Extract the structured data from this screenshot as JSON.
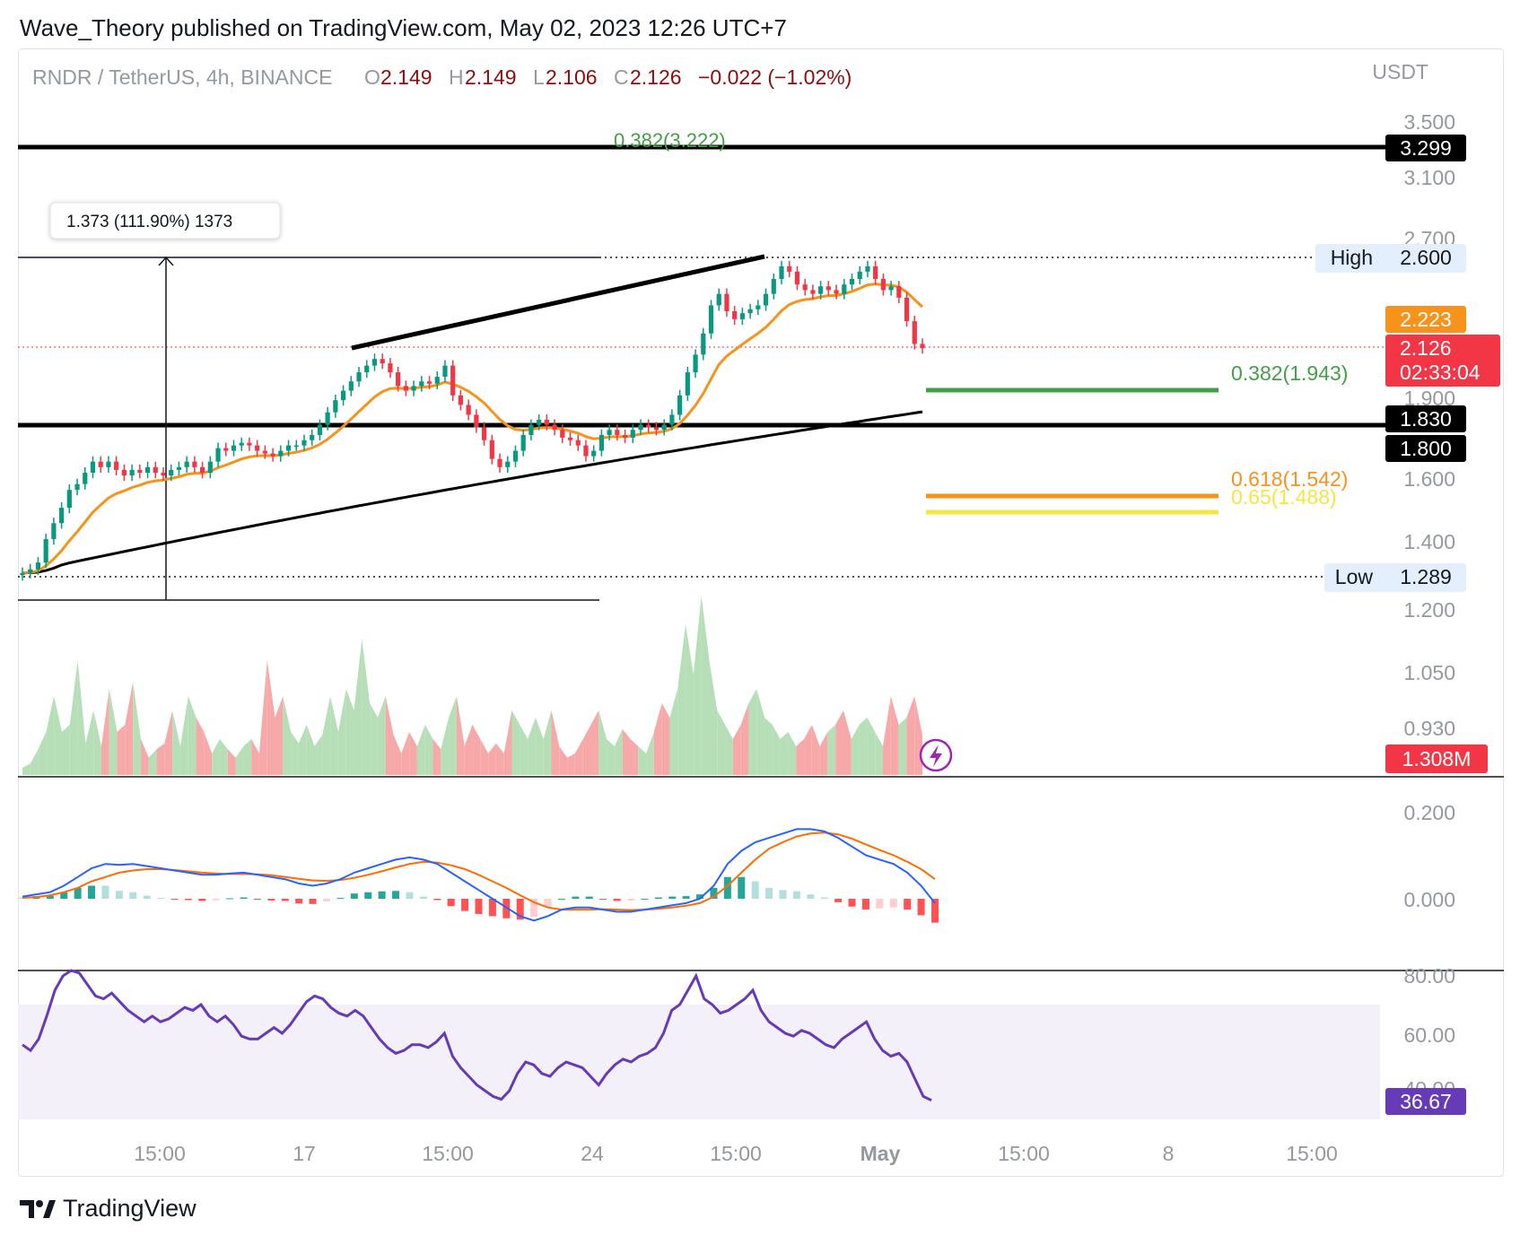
{
  "header": {
    "publisher_line": "Wave_Theory published on TradingView.com, May 02, 2023 12:26 UTC+7"
  },
  "footer": {
    "brand": "TradingView"
  },
  "colors": {
    "up": "#089981",
    "down": "#f23645",
    "ema50": "#f7931a",
    "ema200": "#000000",
    "fib382": "#43a047",
    "fib618": "#f7931a",
    "fib65": "#f5e642",
    "macd": "#2962ff",
    "signal": "#ff6d00",
    "rsi": "#673ab7",
    "vol_up": "#b6dfb8",
    "vol_down": "#f7a9a9"
  },
  "chart_data": [
    {
      "type": "candlestick",
      "symbol": "RNDR / TetherUS, 4h, BINANCE",
      "ohlc": {
        "o_label": "O",
        "o": "2.149",
        "h_label": "H",
        "h": "2.149",
        "l_label": "L",
        "l": "2.106",
        "c_label": "C",
        "c": "2.126",
        "change": "−0.022 (−1.02%)"
      },
      "currency": "USDT",
      "x_ticks": [
        "15:00",
        "17",
        "15:00",
        "24",
        "15:00",
        "May",
        "15:00",
        "8",
        "15:00"
      ],
      "y_ticks": [
        "3.500",
        "3.100",
        "2.700",
        "1.900",
        "1.600",
        "1.400",
        "1.200",
        "1.050",
        "0.930"
      ],
      "log_scale": true,
      "price_tags": {
        "resistance": "3.299",
        "high_label": "High",
        "high": "2.600",
        "ema50": "2.223",
        "last": "2.126",
        "countdown": "02:33:04",
        "support_top": "1.830",
        "support_bottom": "1.800",
        "low_label": "Low",
        "low": "1.289"
      },
      "fib_labels": {
        "f382_top": "0.382(3.222)",
        "f382": "0.382(1.943)",
        "f618": "0.618(1.542)",
        "f65": "0.65(1.488)"
      },
      "measure_label": "1.373 (111.90%) 1373",
      "close_path": [
        1.3,
        1.31,
        1.33,
        1.4,
        1.45,
        1.5,
        1.56,
        1.58,
        1.62,
        1.66,
        1.64,
        1.66,
        1.63,
        1.61,
        1.63,
        1.62,
        1.64,
        1.62,
        1.61,
        1.63,
        1.64,
        1.66,
        1.64,
        1.62,
        1.66,
        1.71,
        1.7,
        1.72,
        1.73,
        1.72,
        1.7,
        1.69,
        1.68,
        1.7,
        1.72,
        1.72,
        1.74,
        1.76,
        1.8,
        1.85,
        1.9,
        1.94,
        1.98,
        2.02,
        2.05,
        2.08,
        2.06,
        2.02,
        1.96,
        1.94,
        1.96,
        1.98,
        1.97,
        2.0,
        2.05,
        1.92,
        1.88,
        1.84,
        1.79,
        1.74,
        1.67,
        1.64,
        1.66,
        1.7,
        1.76,
        1.8,
        1.82,
        1.8,
        1.78,
        1.75,
        1.74,
        1.72,
        1.68,
        1.7,
        1.76,
        1.78,
        1.76,
        1.75,
        1.78,
        1.8,
        1.79,
        1.78,
        1.8,
        1.84,
        1.92,
        2.02,
        2.1,
        2.2,
        2.34,
        2.4,
        2.31,
        2.27,
        2.3,
        2.32,
        2.34,
        2.4,
        2.48,
        2.55,
        2.52,
        2.45,
        2.42,
        2.4,
        2.44,
        2.42,
        2.4,
        2.45,
        2.48,
        2.52,
        2.55,
        2.48,
        2.42,
        2.44,
        2.38,
        2.26,
        2.15,
        2.13
      ],
      "volume_label": "1.308M",
      "volume_path": [
        0.05,
        0.08,
        0.18,
        0.3,
        0.55,
        0.3,
        0.35,
        0.8,
        0.22,
        0.45,
        0.2,
        0.6,
        0.3,
        0.35,
        0.65,
        0.25,
        0.12,
        0.18,
        0.22,
        0.45,
        0.2,
        0.55,
        0.4,
        0.3,
        0.15,
        0.25,
        0.18,
        0.12,
        0.2,
        0.25,
        0.15,
        0.8,
        0.4,
        0.55,
        0.3,
        0.22,
        0.35,
        0.2,
        0.28,
        0.55,
        0.3,
        0.6,
        0.45,
        0.95,
        0.5,
        0.4,
        0.55,
        0.28,
        0.15,
        0.3,
        0.2,
        0.35,
        0.25,
        0.18,
        0.4,
        0.55,
        0.2,
        0.35,
        0.25,
        0.15,
        0.22,
        0.15,
        0.45,
        0.35,
        0.25,
        0.4,
        0.25,
        0.45,
        0.2,
        0.12,
        0.15,
        0.25,
        0.35,
        0.45,
        0.25,
        0.2,
        0.32,
        0.25,
        0.2,
        0.15,
        0.3,
        0.5,
        0.4,
        0.6,
        1.05,
        0.7,
        1.25,
        0.8,
        0.45,
        0.35,
        0.25,
        0.35,
        0.5,
        0.6,
        0.4,
        0.35,
        0.25,
        0.3,
        0.2,
        0.25,
        0.35,
        0.2,
        0.3,
        0.35,
        0.45,
        0.25,
        0.35,
        0.4,
        0.3,
        0.2,
        0.55,
        0.35,
        0.4,
        0.55,
        0.28
      ],
      "macd_ticks": [
        "0.200",
        "0.000"
      ],
      "macd_path": [
        0.005,
        0.01,
        0.015,
        0.03,
        0.05,
        0.07,
        0.08,
        0.078,
        0.08,
        0.075,
        0.07,
        0.065,
        0.06,
        0.055,
        0.055,
        0.058,
        0.06,
        0.055,
        0.05,
        0.045,
        0.035,
        0.03,
        0.035,
        0.045,
        0.06,
        0.07,
        0.08,
        0.09,
        0.095,
        0.09,
        0.08,
        0.06,
        0.04,
        0.02,
        0.0,
        -0.02,
        -0.04,
        -0.05,
        -0.04,
        -0.025,
        -0.02,
        -0.02,
        -0.025,
        -0.03,
        -0.03,
        -0.025,
        -0.02,
        -0.015,
        -0.01,
        0.0,
        0.03,
        0.08,
        0.11,
        0.13,
        0.14,
        0.15,
        0.16,
        0.16,
        0.155,
        0.14,
        0.12,
        0.1,
        0.09,
        0.08,
        0.06,
        0.03,
        -0.01
      ],
      "signal_path": [
        0.002,
        0.004,
        0.008,
        0.015,
        0.025,
        0.04,
        0.05,
        0.06,
        0.065,
        0.068,
        0.068,
        0.066,
        0.063,
        0.06,
        0.058,
        0.057,
        0.057,
        0.056,
        0.054,
        0.05,
        0.046,
        0.042,
        0.041,
        0.043,
        0.048,
        0.055,
        0.063,
        0.072,
        0.08,
        0.085,
        0.083,
        0.077,
        0.068,
        0.055,
        0.04,
        0.025,
        0.008,
        -0.008,
        -0.02,
        -0.025,
        -0.025,
        -0.025,
        -0.024,
        -0.025,
        -0.026,
        -0.025,
        -0.023,
        -0.02,
        -0.016,
        -0.01,
        0.005,
        0.03,
        0.06,
        0.09,
        0.115,
        0.13,
        0.143,
        0.15,
        0.152,
        0.148,
        0.138,
        0.125,
        0.112,
        0.1,
        0.085,
        0.068,
        0.045
      ],
      "rsi_ticks": [
        "80.00",
        "60.00",
        "40.00"
      ],
      "rsi_value": "36.67",
      "rsi_path": [
        56,
        54,
        58,
        66,
        75,
        80,
        82,
        81,
        77,
        73,
        72,
        74,
        71,
        68,
        66,
        64,
        66,
        64,
        65,
        67,
        69,
        68,
        70,
        66,
        64,
        66,
        63,
        59,
        58,
        58,
        60,
        62,
        60,
        63,
        67,
        71,
        73,
        72,
        69,
        67,
        66,
        68,
        66,
        62,
        58,
        55,
        53,
        54,
        56,
        56,
        55,
        57,
        60,
        52,
        48,
        45,
        42,
        40,
        38,
        37,
        40,
        46,
        50,
        49,
        46,
        45,
        48,
        50,
        49,
        48,
        45,
        42,
        46,
        49,
        51,
        50,
        52,
        53,
        55,
        60,
        68,
        70,
        75,
        80,
        72,
        70,
        67,
        68,
        70,
        72,
        75,
        68,
        64,
        62,
        60,
        59,
        61,
        60,
        58,
        56,
        55,
        58,
        60,
        62,
        64,
        58,
        54,
        52,
        53,
        50,
        44,
        38,
        36.67
      ]
    }
  ]
}
